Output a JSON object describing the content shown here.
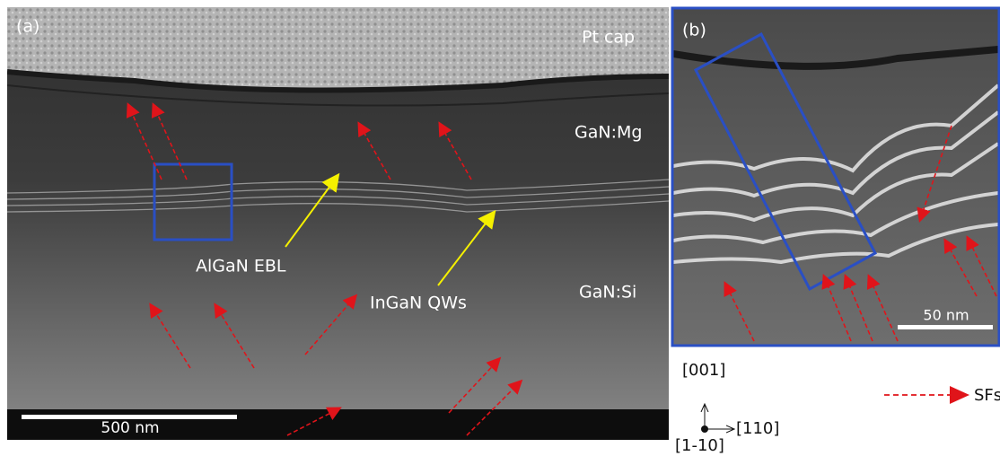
{
  "panel_a": {
    "label": "(a)",
    "layers": [
      "Pt cap",
      "GaN:Mg",
      "GaN:Si"
    ],
    "annotations": [
      "AlGaN EBL",
      "InGaN QWs"
    ],
    "scale_bar": "500 nm"
  },
  "panel_b": {
    "label": "(b)",
    "scale_bar": "50 nm"
  },
  "axes": {
    "up": "[001]",
    "right": "[110]",
    "out": "[1-10]"
  },
  "legend": {
    "label": "SFs"
  }
}
